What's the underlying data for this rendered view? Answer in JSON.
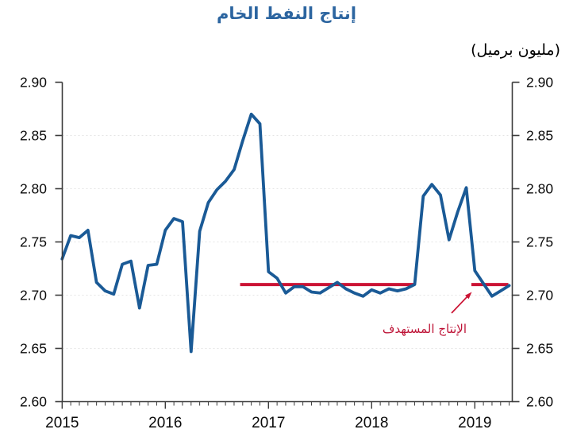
{
  "title": {
    "text": "إنتاج النفط الخام"
  },
  "subtitle": {
    "text": "(مليون برميل)"
  },
  "annotation": {
    "text": "الإنتاج المستهدف"
  },
  "colors": {
    "series_line": "#1A5A96",
    "target_line": "#CB1334",
    "title_text": "#2C65A0",
    "annotation_text": "#BE1437",
    "axis": "#3C3C3C",
    "tick_label": "#0A0A0A",
    "gridline": "#E4E4E4"
  },
  "chart_data": {
    "type": "line",
    "title": "إنتاج النفط الخام",
    "unit_label": "(مليون برميل)",
    "x_start": "2015-01",
    "x_end": "2019-05",
    "x_tick_labels": [
      "2015",
      "2016",
      "2017",
      "2018",
      "2019"
    ],
    "y_ticks": [
      "2.60",
      "2.65",
      "2.70",
      "2.75",
      "2.80",
      "2.85",
      "2.90"
    ],
    "ylim": [
      2.6,
      2.9
    ],
    "grid": "horizontal-dotted",
    "legend": "none",
    "series": [
      {
        "name": "crude-oil-production",
        "months": [
          "2015-01",
          "2015-02",
          "2015-03",
          "2015-04",
          "2015-05",
          "2015-06",
          "2015-07",
          "2015-08",
          "2015-09",
          "2015-10",
          "2015-11",
          "2015-12",
          "2016-01",
          "2016-02",
          "2016-03",
          "2016-04",
          "2016-05",
          "2016-06",
          "2016-07",
          "2016-08",
          "2016-09",
          "2016-10",
          "2016-11",
          "2016-12",
          "2017-01",
          "2017-02",
          "2017-03",
          "2017-04",
          "2017-05",
          "2017-06",
          "2017-07",
          "2017-08",
          "2017-09",
          "2017-10",
          "2017-11",
          "2017-12",
          "2018-01",
          "2018-02",
          "2018-03",
          "2018-04",
          "2018-05",
          "2018-06",
          "2018-07",
          "2018-08",
          "2018-09",
          "2018-10",
          "2018-11",
          "2018-12",
          "2019-01",
          "2019-02",
          "2019-03",
          "2019-04",
          "2019-05"
        ],
        "values": [
          2.734,
          2.756,
          2.754,
          2.761,
          2.712,
          2.704,
          2.701,
          2.729,
          2.732,
          2.688,
          2.728,
          2.729,
          2.761,
          2.772,
          2.769,
          2.647,
          2.76,
          2.787,
          2.799,
          2.807,
          2.818,
          2.845,
          2.87,
          2.861,
          2.722,
          2.716,
          2.702,
          2.708,
          2.708,
          2.703,
          2.702,
          2.707,
          2.712,
          2.706,
          2.702,
          2.699,
          2.705,
          2.702,
          2.706,
          2.704,
          2.706,
          2.71,
          2.793,
          2.804,
          2.794,
          2.752,
          2.778,
          2.801,
          2.723,
          2.711,
          2.699,
          2.704,
          2.709
        ]
      }
    ],
    "target": {
      "label": "الإنتاج المستهدف",
      "value": 2.71,
      "segments_month_index": [
        [
          20.7,
          40.9
        ],
        [
          47.6,
          51.9
        ]
      ]
    }
  }
}
